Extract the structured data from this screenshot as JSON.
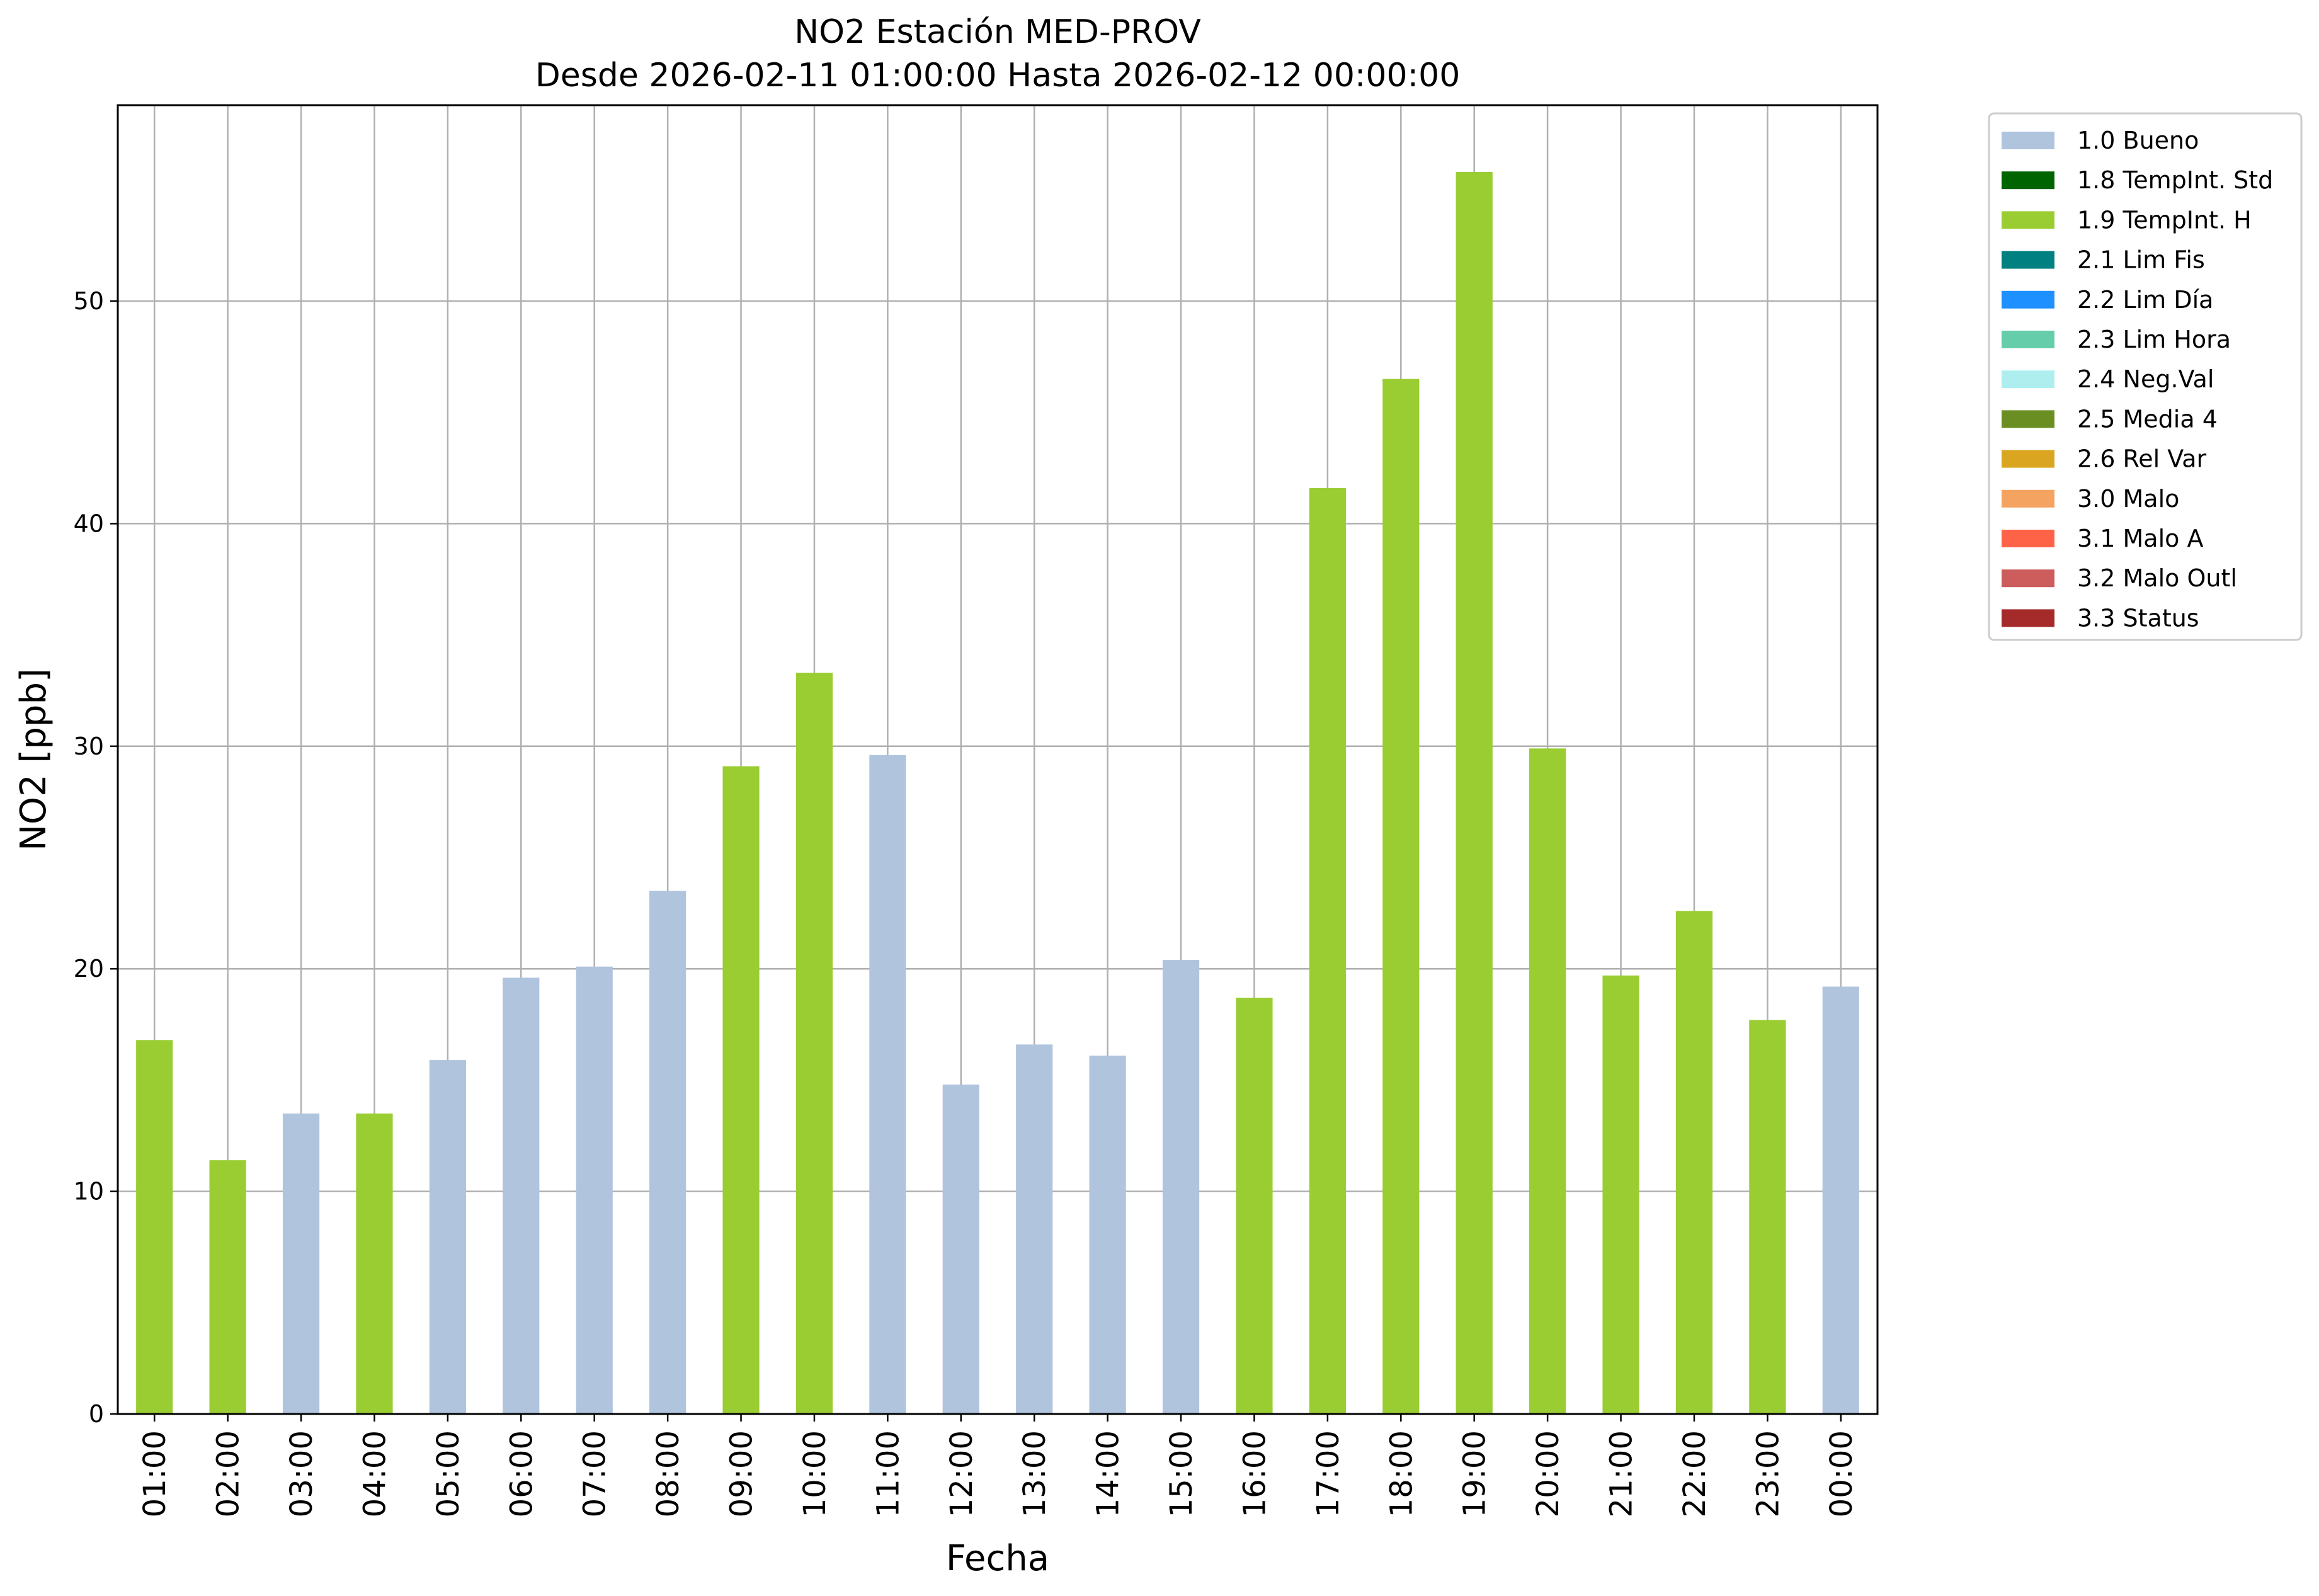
{
  "chart_data": {
    "type": "bar",
    "title": "NO2 Estación MED-PROV",
    "subtitle": "Desde 2026-02-11 01:00:00 Hasta 2026-02-12 00:00:00",
    "xlabel": "Fecha",
    "ylabel": "NO2 [ppb]",
    "ylim": [
      0,
      58.8
    ],
    "yticks": [
      0,
      10,
      20,
      30,
      40,
      50
    ],
    "grid": true,
    "legend_position": "outside-top-right",
    "categories": [
      "01:00",
      "02:00",
      "03:00",
      "04:00",
      "05:00",
      "06:00",
      "07:00",
      "08:00",
      "09:00",
      "10:00",
      "11:00",
      "12:00",
      "13:00",
      "14:00",
      "15:00",
      "16:00",
      "17:00",
      "18:00",
      "19:00",
      "20:00",
      "21:00",
      "22:00",
      "23:00",
      "00:00"
    ],
    "values": [
      16.8,
      11.4,
      13.5,
      13.5,
      15.9,
      19.6,
      20.1,
      23.5,
      29.1,
      33.3,
      29.6,
      14.8,
      16.6,
      16.1,
      20.4,
      18.7,
      41.6,
      46.5,
      55.8,
      29.9,
      19.7,
      22.6,
      17.7,
      19.2
    ],
    "flags": [
      "1.9 TempInt. H",
      "1.9 TempInt. H",
      "1.0 Bueno",
      "1.9 TempInt. H",
      "1.0 Bueno",
      "1.0 Bueno",
      "1.0 Bueno",
      "1.0 Bueno",
      "1.9 TempInt. H",
      "1.9 TempInt. H",
      "1.0 Bueno",
      "1.0 Bueno",
      "1.0 Bueno",
      "1.0 Bueno",
      "1.0 Bueno",
      "1.9 TempInt. H",
      "1.9 TempInt. H",
      "1.9 TempInt. H",
      "1.9 TempInt. H",
      "1.9 TempInt. H",
      "1.9 TempInt. H",
      "1.9 TempInt. H",
      "1.9 TempInt. H",
      "1.0 Bueno"
    ],
    "legend": [
      {
        "label": "1.0 Bueno",
        "color": "#b0c4de"
      },
      {
        "label": "1.8 TempInt. Std",
        "color": "#006400"
      },
      {
        "label": "1.9 TempInt. H",
        "color": "#9acd32"
      },
      {
        "label": "2.1 Lim Fis",
        "color": "#008080"
      },
      {
        "label": "2.2 Lim Día",
        "color": "#1e90ff"
      },
      {
        "label": "2.3 Lim Hora",
        "color": "#66cdaa"
      },
      {
        "label": "2.4 Neg.Val",
        "color": "#afeeee"
      },
      {
        "label": "2.5 Media 4",
        "color": "#6b8e23"
      },
      {
        "label": "2.6 Rel Var",
        "color": "#daa520"
      },
      {
        "label": "3.0 Malo",
        "color": "#f4a460"
      },
      {
        "label": "3.1 Malo A",
        "color": "#ff6347"
      },
      {
        "label": "3.2 Malo Outl",
        "color": "#cd5c5c"
      },
      {
        "label": "3.3 Status",
        "color": "#a52a2a"
      }
    ]
  }
}
